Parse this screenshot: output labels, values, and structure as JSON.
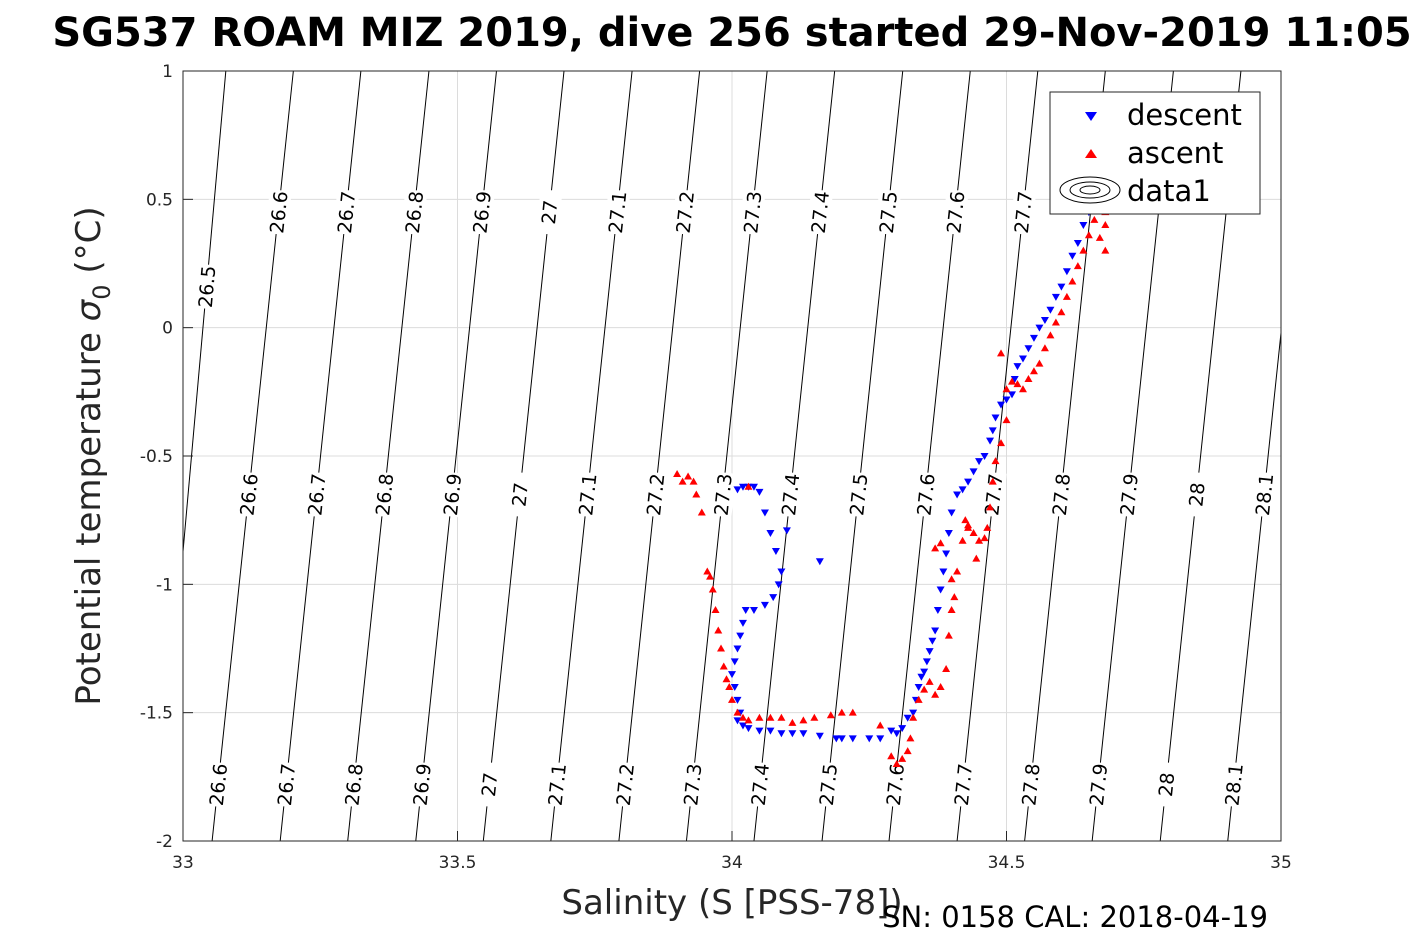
{
  "chart_data": {
    "type": "scatter",
    "title": "SG537 ROAM MIZ 2019, dive 256 started 29-Nov-2019 11:05",
    "xlabel": "Salinity (S [PSS-78])",
    "ylabel": "Potential temperature σ₀ (°C)",
    "ylabel_main": "Potential temperature ",
    "ylabel_sigma": "σ",
    "ylabel_sub": "0",
    "ylabel_unit": " (°C)",
    "xlim": [
      33,
      35
    ],
    "ylim": [
      -2,
      1
    ],
    "xticks": [
      "33",
      "33.5",
      "34",
      "34.5",
      "35"
    ],
    "yticks": [
      "-2",
      "-1.5",
      "-1",
      "-0.5",
      "0",
      "0.5",
      "1"
    ],
    "grid": true,
    "legend_position": "top-right",
    "legend": [
      "descent",
      "ascent",
      "data1"
    ],
    "footer": "SN: 0158  CAL: 2018-04-19",
    "colors": {
      "descent": "#0000ff",
      "ascent": "#ff0000",
      "contour": "#000000"
    },
    "contours": {
      "levels": [
        "26.5",
        "26.6",
        "26.7",
        "26.8",
        "26.9",
        "27",
        "27.1",
        "27.2",
        "27.3",
        "27.4",
        "27.5",
        "27.6",
        "27.7",
        "27.8",
        "27.9",
        "28",
        "28.1"
      ],
      "lines": [
        {
          "level": "26.5",
          "bottom_s": 32.953,
          "top_s": 33.078
        },
        {
          "level": "26.6",
          "bottom_s": 33.053,
          "top_s": 33.201
        },
        {
          "level": "26.7",
          "bottom_s": 33.177,
          "top_s": 33.324
        },
        {
          "level": "26.8",
          "bottom_s": 33.3,
          "top_s": 33.448
        },
        {
          "level": "26.9",
          "bottom_s": 33.424,
          "top_s": 33.571
        },
        {
          "level": "27",
          "bottom_s": 33.547,
          "top_s": 33.694
        },
        {
          "level": "27.1",
          "bottom_s": 33.67,
          "top_s": 33.818
        },
        {
          "level": "27.2",
          "bottom_s": 33.794,
          "top_s": 33.941
        },
        {
          "level": "27.3",
          "bottom_s": 33.917,
          "top_s": 34.064
        },
        {
          "level": "27.4",
          "bottom_s": 34.04,
          "top_s": 34.187
        },
        {
          "level": "27.5",
          "bottom_s": 34.164,
          "top_s": 34.311
        },
        {
          "level": "27.6",
          "bottom_s": 34.286,
          "top_s": 34.434
        },
        {
          "level": "27.7",
          "bottom_s": 34.41,
          "top_s": 34.557
        },
        {
          "level": "27.8",
          "bottom_s": 34.533,
          "top_s": 34.68
        },
        {
          "level": "27.9",
          "bottom_s": 34.656,
          "top_s": 34.804
        },
        {
          "level": "28",
          "bottom_s": 34.78,
          "top_s": 34.927
        },
        {
          "level": "28.1",
          "bottom_s": 34.903,
          "top_s": 35.05
        }
      ],
      "label_rows": [
        {
          "theta": 0.45,
          "levels": [
            "26.6",
            "26.7",
            "26.8",
            "26.9",
            "27",
            "27.1",
            "27.2",
            "27.3",
            "27.4",
            "27.5",
            "27.6",
            "27.7"
          ]
        },
        {
          "theta": 0.16,
          "levels": [
            "26.5"
          ]
        },
        {
          "theta": -0.65,
          "levels": [
            "26.6",
            "26.7",
            "26.8",
            "26.9",
            "27",
            "27.1",
            "27.2",
            "27.3",
            "27.4",
            "27.5",
            "27.6",
            "27.7",
            "27.8",
            "27.9",
            "28",
            "28.1"
          ]
        },
        {
          "theta": -1.78,
          "levels": [
            "26.6",
            "26.7",
            "26.8",
            "26.9",
            "27",
            "27.1",
            "27.2",
            "27.3",
            "27.4",
            "27.5",
            "27.6",
            "27.7",
            "27.8",
            "27.9",
            "28",
            "28.1"
          ]
        }
      ]
    },
    "series": [
      {
        "name": "descent",
        "marker": "triangle-down",
        "points": [
          [
            34.68,
            0.5
          ],
          [
            34.67,
            0.49
          ],
          [
            34.66,
            0.47
          ],
          [
            34.65,
            0.45
          ],
          [
            34.64,
            0.4
          ],
          [
            34.63,
            0.33
          ],
          [
            34.62,
            0.28
          ],
          [
            34.61,
            0.22
          ],
          [
            34.6,
            0.16
          ],
          [
            34.59,
            0.12
          ],
          [
            34.58,
            0.07
          ],
          [
            34.57,
            0.03
          ],
          [
            34.56,
            0.0
          ],
          [
            34.55,
            -0.04
          ],
          [
            34.54,
            -0.08
          ],
          [
            34.53,
            -0.12
          ],
          [
            34.52,
            -0.15
          ],
          [
            34.515,
            -0.2
          ],
          [
            34.51,
            -0.26
          ],
          [
            34.5,
            -0.28
          ],
          [
            34.49,
            -0.3
          ],
          [
            34.48,
            -0.35
          ],
          [
            34.475,
            -0.4
          ],
          [
            34.47,
            -0.44
          ],
          [
            34.46,
            -0.5
          ],
          [
            34.45,
            -0.52
          ],
          [
            34.44,
            -0.56
          ],
          [
            34.43,
            -0.6
          ],
          [
            34.42,
            -0.63
          ],
          [
            34.41,
            -0.65
          ],
          [
            34.4,
            -0.72
          ],
          [
            34.395,
            -0.8
          ],
          [
            34.39,
            -0.88
          ],
          [
            34.385,
            -0.95
          ],
          [
            34.38,
            -1.02
          ],
          [
            34.375,
            -1.1
          ],
          [
            34.37,
            -1.18
          ],
          [
            34.365,
            -1.22
          ],
          [
            34.36,
            -1.26
          ],
          [
            34.355,
            -1.3
          ],
          [
            34.35,
            -1.34
          ],
          [
            34.345,
            -1.36
          ],
          [
            34.34,
            -1.4
          ],
          [
            34.335,
            -1.45
          ],
          [
            34.33,
            -1.5
          ],
          [
            34.32,
            -1.52
          ],
          [
            34.31,
            -1.56
          ],
          [
            34.3,
            -1.58
          ],
          [
            34.29,
            -1.57
          ],
          [
            34.27,
            -1.6
          ],
          [
            34.25,
            -1.6
          ],
          [
            34.22,
            -1.6
          ],
          [
            34.2,
            -1.6
          ],
          [
            34.19,
            -1.6
          ],
          [
            34.16,
            -1.59
          ],
          [
            34.13,
            -1.58
          ],
          [
            34.11,
            -1.58
          ],
          [
            34.09,
            -1.58
          ],
          [
            34.07,
            -1.57
          ],
          [
            34.05,
            -1.57
          ],
          [
            34.03,
            -1.56
          ],
          [
            34.02,
            -1.55
          ],
          [
            34.01,
            -1.53
          ],
          [
            34.015,
            -1.5
          ],
          [
            34.01,
            -1.45
          ],
          [
            34.005,
            -1.4
          ],
          [
            34.0,
            -1.35
          ],
          [
            34.005,
            -1.3
          ],
          [
            34.01,
            -1.25
          ],
          [
            34.015,
            -1.2
          ],
          [
            34.02,
            -1.15
          ],
          [
            34.025,
            -1.1
          ],
          [
            34.04,
            -1.1
          ],
          [
            34.06,
            -1.08
          ],
          [
            34.075,
            -1.05
          ],
          [
            34.085,
            -1.0
          ],
          [
            34.09,
            -0.95
          ],
          [
            34.08,
            -0.87
          ],
          [
            34.07,
            -0.8
          ],
          [
            34.06,
            -0.72
          ],
          [
            34.05,
            -0.64
          ],
          [
            34.04,
            -0.62
          ],
          [
            34.03,
            -0.62
          ],
          [
            34.02,
            -0.62
          ],
          [
            34.01,
            -0.63
          ],
          [
            34.1,
            -0.79
          ],
          [
            34.16,
            -0.91
          ]
        ]
      },
      {
        "name": "ascent",
        "marker": "triangle-up",
        "points": [
          [
            34.68,
            0.3
          ],
          [
            34.68,
            0.4
          ],
          [
            34.68,
            0.45
          ],
          [
            34.68,
            0.5
          ],
          [
            34.67,
            0.35
          ],
          [
            34.66,
            0.42
          ],
          [
            34.65,
            0.36
          ],
          [
            34.64,
            0.3
          ],
          [
            34.63,
            0.24
          ],
          [
            34.62,
            0.18
          ],
          [
            34.61,
            0.12
          ],
          [
            34.6,
            0.06
          ],
          [
            34.59,
            0.02
          ],
          [
            34.58,
            -0.03
          ],
          [
            34.57,
            -0.08
          ],
          [
            34.56,
            -0.14
          ],
          [
            34.55,
            -0.17
          ],
          [
            34.54,
            -0.2
          ],
          [
            34.53,
            -0.24
          ],
          [
            34.52,
            -0.22
          ],
          [
            34.51,
            -0.21
          ],
          [
            34.5,
            -0.24
          ],
          [
            34.49,
            -0.1
          ],
          [
            34.5,
            -0.36
          ],
          [
            34.49,
            -0.45
          ],
          [
            34.48,
            -0.52
          ],
          [
            34.475,
            -0.6
          ],
          [
            34.47,
            -0.7
          ],
          [
            34.465,
            -0.78
          ],
          [
            34.46,
            -0.82
          ],
          [
            34.45,
            -0.83
          ],
          [
            34.44,
            -0.8
          ],
          [
            34.43,
            -0.78
          ],
          [
            34.425,
            -0.75
          ],
          [
            34.42,
            -0.83
          ],
          [
            34.41,
            -0.95
          ],
          [
            34.405,
            -1.05
          ],
          [
            34.4,
            -1.1
          ],
          [
            34.395,
            -1.2
          ],
          [
            34.39,
            -1.33
          ],
          [
            34.38,
            -1.4
          ],
          [
            34.37,
            -1.43
          ],
          [
            34.36,
            -1.38
          ],
          [
            34.35,
            -1.41
          ],
          [
            34.34,
            -1.45
          ],
          [
            34.33,
            -1.52
          ],
          [
            34.325,
            -1.6
          ],
          [
            34.32,
            -1.65
          ],
          [
            34.31,
            -1.68
          ],
          [
            34.3,
            -1.7
          ],
          [
            34.29,
            -1.67
          ],
          [
            34.27,
            -1.55
          ],
          [
            34.22,
            -1.5
          ],
          [
            34.2,
            -1.5
          ],
          [
            34.18,
            -1.51
          ],
          [
            34.15,
            -1.52
          ],
          [
            34.13,
            -1.53
          ],
          [
            34.11,
            -1.54
          ],
          [
            34.09,
            -1.52
          ],
          [
            34.07,
            -1.52
          ],
          [
            34.05,
            -1.52
          ],
          [
            34.03,
            -1.53
          ],
          [
            34.02,
            -1.52
          ],
          [
            34.01,
            -1.5
          ],
          [
            34.0,
            -1.45
          ],
          [
            33.995,
            -1.4
          ],
          [
            33.99,
            -1.37
          ],
          [
            33.985,
            -1.32
          ],
          [
            33.98,
            -1.25
          ],
          [
            33.975,
            -1.18
          ],
          [
            33.97,
            -1.1
          ],
          [
            33.965,
            -1.02
          ],
          [
            33.96,
            -0.97
          ],
          [
            33.955,
            -0.95
          ],
          [
            33.945,
            -0.72
          ],
          [
            33.935,
            -0.65
          ],
          [
            33.93,
            -0.6
          ],
          [
            33.92,
            -0.58
          ],
          [
            33.91,
            -0.6
          ],
          [
            33.9,
            -0.57
          ],
          [
            34.03,
            -0.62
          ],
          [
            34.38,
            -0.84
          ],
          [
            34.37,
            -0.86
          ],
          [
            34.4,
            -0.98
          ],
          [
            34.43,
            -0.77
          ],
          [
            34.445,
            -0.9
          ]
        ]
      }
    ]
  }
}
